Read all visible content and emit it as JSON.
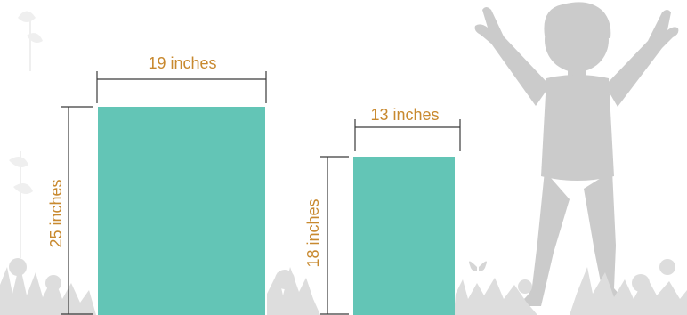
{
  "colors": {
    "rectangle_fill": "#63C5B6",
    "dimension_text": "#C8892F",
    "dimension_line": "#3a3a3a",
    "silhouette": "#CBCBCB",
    "grass": "#DDDDDD"
  },
  "large_rectangle": {
    "width_label": "19 inches",
    "height_label": "25 inches"
  },
  "small_rectangle": {
    "width_label": "13 inches",
    "height_label": "18 inches"
  },
  "icons": [
    "child-silhouette-icon",
    "grass-flowers-icon",
    "butterfly-icon",
    "faded-plant-icon"
  ]
}
